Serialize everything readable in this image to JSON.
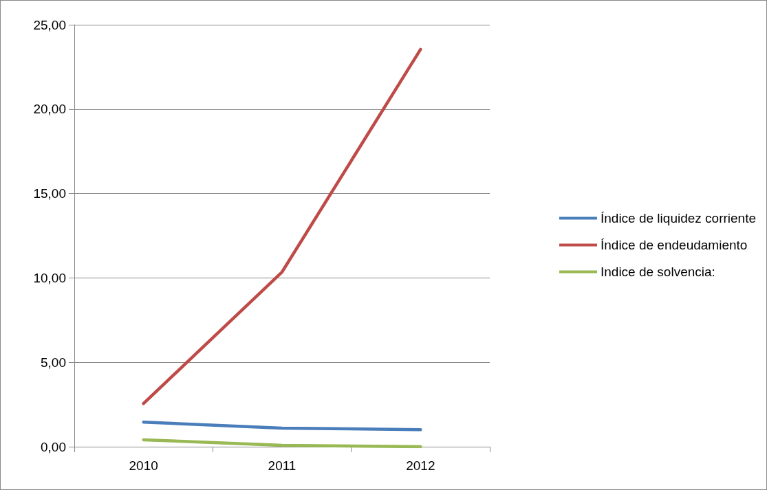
{
  "chart_data": {
    "type": "line",
    "categories": [
      "2010",
      "2011",
      "2012"
    ],
    "series": [
      {
        "name": "Índice de liquidez corriente",
        "color": "#4a7ebb",
        "values": [
          1.46,
          1.1,
          1.01
        ]
      },
      {
        "name": "Índice de endeudamiento",
        "color": "#be4b48",
        "values": [
          2.56,
          10.35,
          23.54
        ]
      },
      {
        "name": "Indice de solvencia:",
        "color": "#98b954",
        "values": [
          0.41,
          0.08,
          0.0
        ]
      }
    ],
    "ylim": [
      0,
      25
    ],
    "yticks": [
      {
        "value": 0,
        "label": "0,00"
      },
      {
        "value": 5,
        "label": "5,00"
      },
      {
        "value": 10,
        "label": "10,00"
      },
      {
        "value": 15,
        "label": "15,00"
      },
      {
        "value": 20,
        "label": "20,00"
      },
      {
        "value": 25,
        "label": "25,00"
      }
    ],
    "grid": "y",
    "legend": "right",
    "marker": "none",
    "line_style": "solid"
  }
}
